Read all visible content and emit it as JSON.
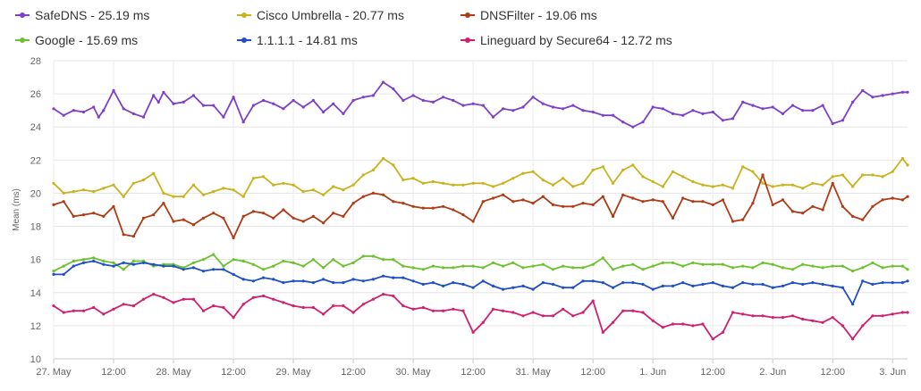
{
  "chart_data": {
    "type": "line",
    "title": "",
    "xlabel": "",
    "ylabel": "Mean (ms)",
    "ylim": [
      10,
      28
    ],
    "yticks": [
      10,
      12,
      14,
      16,
      18,
      20,
      22,
      24,
      26,
      28
    ],
    "xlim": [
      0,
      171
    ],
    "x_unit": "hours",
    "xticks": [
      {
        "x": 0,
        "label": "27. May"
      },
      {
        "x": 12,
        "label": "12:00"
      },
      {
        "x": 24,
        "label": "28. May"
      },
      {
        "x": 36,
        "label": "12:00"
      },
      {
        "x": 48,
        "label": "29. May"
      },
      {
        "x": 60,
        "label": "12:00"
      },
      {
        "x": 72,
        "label": "30. May"
      },
      {
        "x": 84,
        "label": "12:00"
      },
      {
        "x": 96,
        "label": "31. May"
      },
      {
        "x": 108,
        "label": "12:00"
      },
      {
        "x": 120,
        "label": "1. Jun"
      },
      {
        "x": 132,
        "label": "12:00"
      },
      {
        "x": 144,
        "label": "2. Jun"
      },
      {
        "x": 156,
        "label": "12:00"
      },
      {
        "x": 168,
        "label": "3. Jun"
      }
    ],
    "grid": true,
    "legend_placement": "top",
    "series": [
      {
        "name": "SafeDNS - 25.19 ms",
        "color": "#7e3fc9",
        "x": [
          0,
          2,
          4,
          6,
          8,
          9,
          10,
          12,
          14,
          16,
          18,
          20,
          21,
          22,
          24,
          26,
          28,
          30,
          32,
          34,
          36,
          38,
          40,
          42,
          44,
          46,
          48,
          50,
          52,
          54,
          56,
          58,
          60,
          62,
          64,
          66,
          68,
          70,
          72,
          74,
          76,
          78,
          80,
          82,
          84,
          86,
          88,
          90,
          92,
          94,
          96,
          98,
          100,
          102,
          104,
          106,
          108,
          110,
          112,
          114,
          116,
          118,
          120,
          122,
          124,
          126,
          128,
          130,
          132,
          134,
          136,
          138,
          140,
          142,
          144,
          146,
          148,
          150,
          152,
          154,
          156,
          158,
          160,
          162,
          164,
          166,
          168,
          170,
          171
        ],
        "y": [
          25.1,
          24.7,
          25.0,
          24.9,
          25.2,
          24.6,
          25.0,
          26.2,
          25.1,
          24.8,
          24.6,
          25.9,
          25.5,
          26.1,
          25.4,
          25.5,
          25.9,
          25.3,
          25.3,
          24.6,
          25.8,
          24.3,
          25.3,
          25.6,
          25.4,
          25.1,
          25.6,
          25.2,
          25.6,
          24.9,
          25.4,
          24.8,
          25.6,
          25.8,
          25.9,
          26.7,
          26.3,
          25.6,
          25.9,
          25.6,
          25.5,
          25.8,
          25.6,
          25.3,
          25.4,
          25.3,
          24.6,
          25.1,
          25.0,
          25.2,
          25.8,
          25.4,
          25.2,
          25.1,
          25.3,
          25.0,
          24.9,
          24.7,
          24.7,
          24.3,
          24.0,
          24.3,
          25.2,
          25.1,
          24.8,
          24.7,
          25.0,
          24.8,
          24.9,
          24.4,
          24.5,
          25.5,
          25.3,
          25.1,
          25.2,
          24.8,
          25.3,
          25.0,
          25.0,
          25.3,
          24.2,
          24.4,
          25.5,
          26.2,
          25.8,
          25.9,
          26.0,
          26.1,
          26.1
        ]
      },
      {
        "name": "Cisco Umbrella - 20.77 ms",
        "color": "#c9b21c",
        "x": [
          0,
          2,
          4,
          6,
          8,
          10,
          12,
          14,
          16,
          18,
          20,
          22,
          24,
          26,
          28,
          30,
          32,
          34,
          36,
          38,
          40,
          42,
          44,
          46,
          48,
          50,
          52,
          54,
          56,
          58,
          60,
          62,
          64,
          66,
          68,
          70,
          72,
          74,
          76,
          78,
          80,
          82,
          84,
          86,
          88,
          90,
          92,
          94,
          96,
          98,
          100,
          102,
          104,
          106,
          108,
          110,
          112,
          114,
          116,
          118,
          120,
          122,
          124,
          126,
          128,
          130,
          132,
          134,
          136,
          138,
          140,
          142,
          144,
          146,
          148,
          150,
          152,
          154,
          156,
          158,
          160,
          162,
          164,
          166,
          168,
          170,
          171
        ],
        "y": [
          20.6,
          20.0,
          20.1,
          20.2,
          20.1,
          20.3,
          20.5,
          19.8,
          20.6,
          20.8,
          21.2,
          20.0,
          19.8,
          19.8,
          20.5,
          19.9,
          20.1,
          20.3,
          20.2,
          19.8,
          20.9,
          21.0,
          20.5,
          20.6,
          20.5,
          20.1,
          20.2,
          19.9,
          20.4,
          20.2,
          20.5,
          21.1,
          21.4,
          22.1,
          21.7,
          20.8,
          20.9,
          20.6,
          20.7,
          20.6,
          20.5,
          20.5,
          20.6,
          20.6,
          20.4,
          20.6,
          20.9,
          21.2,
          21.3,
          20.8,
          20.5,
          20.9,
          20.4,
          20.6,
          21.4,
          21.6,
          20.6,
          21.4,
          21.7,
          21.0,
          20.7,
          20.4,
          21.3,
          21.0,
          20.7,
          20.5,
          20.4,
          20.5,
          20.3,
          21.6,
          21.3,
          20.6,
          20.4,
          20.5,
          20.5,
          20.3,
          20.6,
          20.5,
          21.0,
          21.1,
          20.4,
          21.1,
          21.1,
          21.0,
          21.3,
          22.1,
          21.7
        ]
      },
      {
        "name": "DNSFilter - 19.06 ms",
        "color": "#b03a14",
        "x": [
          0,
          2,
          4,
          6,
          8,
          10,
          12,
          14,
          16,
          18,
          20,
          22,
          24,
          26,
          28,
          30,
          32,
          34,
          36,
          38,
          40,
          42,
          44,
          46,
          48,
          50,
          52,
          54,
          56,
          58,
          60,
          62,
          64,
          66,
          68,
          70,
          72,
          74,
          76,
          78,
          80,
          82,
          84,
          86,
          88,
          90,
          92,
          94,
          96,
          98,
          100,
          102,
          104,
          106,
          108,
          110,
          112,
          114,
          116,
          118,
          120,
          122,
          124,
          126,
          128,
          130,
          132,
          134,
          136,
          138,
          140,
          142,
          144,
          146,
          148,
          150,
          152,
          154,
          156,
          158,
          160,
          162,
          164,
          166,
          168,
          170,
          171
        ],
        "y": [
          19.3,
          19.5,
          18.6,
          18.7,
          18.8,
          18.6,
          19.2,
          17.5,
          17.4,
          18.5,
          18.7,
          19.4,
          18.3,
          18.4,
          18.1,
          18.5,
          18.8,
          18.5,
          17.3,
          18.6,
          18.9,
          18.8,
          18.5,
          19.0,
          18.5,
          18.3,
          18.6,
          18.2,
          18.8,
          18.6,
          19.4,
          19.8,
          20.0,
          19.9,
          19.5,
          19.4,
          19.2,
          19.1,
          19.1,
          19.2,
          19.0,
          18.7,
          18.3,
          19.5,
          19.7,
          19.9,
          19.5,
          19.6,
          19.4,
          19.8,
          19.3,
          19.2,
          19.2,
          19.4,
          19.3,
          19.8,
          18.6,
          19.9,
          19.7,
          19.5,
          19.6,
          19.5,
          18.5,
          19.7,
          19.5,
          19.5,
          19.3,
          19.6,
          18.3,
          18.4,
          19.4,
          21.1,
          19.3,
          19.6,
          18.9,
          18.8,
          19.2,
          19.0,
          20.6,
          19.2,
          18.6,
          18.4,
          19.2,
          19.6,
          19.7,
          19.6,
          19.8
        ]
      },
      {
        "name": "Google - 15.69 ms",
        "color": "#6cc12c",
        "x": [
          0,
          2,
          4,
          6,
          8,
          10,
          12,
          14,
          16,
          18,
          20,
          22,
          24,
          26,
          28,
          30,
          32,
          34,
          36,
          38,
          40,
          42,
          44,
          46,
          48,
          50,
          52,
          54,
          56,
          58,
          60,
          62,
          64,
          66,
          68,
          70,
          72,
          74,
          76,
          78,
          80,
          82,
          84,
          86,
          88,
          90,
          92,
          94,
          96,
          98,
          100,
          102,
          104,
          106,
          108,
          110,
          112,
          114,
          116,
          118,
          120,
          122,
          124,
          126,
          128,
          130,
          132,
          134,
          136,
          138,
          140,
          142,
          144,
          146,
          148,
          150,
          152,
          154,
          156,
          158,
          160,
          162,
          164,
          166,
          168,
          170,
          171
        ],
        "y": [
          15.3,
          15.6,
          15.9,
          16.0,
          16.1,
          15.9,
          15.8,
          15.4,
          15.9,
          15.9,
          15.6,
          15.7,
          15.7,
          15.5,
          15.8,
          16.0,
          16.3,
          15.6,
          16.0,
          15.9,
          15.7,
          15.4,
          15.6,
          15.9,
          15.8,
          15.6,
          16.0,
          15.5,
          16.0,
          15.6,
          15.8,
          16.2,
          16.2,
          16.0,
          16.0,
          15.6,
          15.5,
          15.4,
          15.6,
          15.5,
          15.5,
          15.6,
          15.6,
          15.5,
          15.8,
          15.6,
          15.8,
          15.5,
          15.6,
          15.7,
          15.4,
          15.6,
          15.5,
          15.5,
          15.7,
          16.1,
          15.4,
          15.6,
          15.7,
          15.4,
          15.6,
          15.8,
          15.8,
          15.6,
          15.8,
          15.7,
          15.7,
          15.7,
          15.5,
          15.6,
          15.5,
          15.8,
          15.7,
          15.5,
          15.4,
          15.7,
          15.6,
          15.5,
          15.6,
          15.6,
          15.3,
          15.5,
          15.8,
          15.5,
          15.6,
          15.6,
          15.4
        ]
      },
      {
        "name": "1.1.1.1 - 14.81 ms",
        "color": "#1f4fc4",
        "x": [
          0,
          2,
          4,
          6,
          8,
          10,
          12,
          14,
          16,
          18,
          20,
          22,
          24,
          26,
          28,
          30,
          32,
          34,
          36,
          38,
          40,
          42,
          44,
          46,
          48,
          50,
          52,
          54,
          56,
          58,
          60,
          62,
          64,
          66,
          68,
          70,
          72,
          74,
          76,
          78,
          80,
          82,
          84,
          86,
          88,
          90,
          92,
          94,
          96,
          98,
          100,
          102,
          104,
          106,
          108,
          110,
          112,
          114,
          116,
          118,
          120,
          122,
          124,
          126,
          128,
          130,
          132,
          134,
          136,
          138,
          140,
          142,
          144,
          146,
          148,
          150,
          152,
          154,
          156,
          158,
          160,
          162,
          164,
          166,
          168,
          170,
          171
        ],
        "y": [
          15.1,
          15.1,
          15.6,
          15.8,
          15.9,
          15.7,
          15.6,
          15.8,
          15.7,
          15.8,
          15.7,
          15.6,
          15.6,
          15.4,
          15.5,
          15.3,
          15.4,
          15.4,
          15.1,
          14.8,
          14.7,
          14.9,
          14.8,
          14.6,
          14.7,
          14.7,
          14.6,
          14.8,
          14.6,
          14.6,
          14.8,
          14.7,
          14.8,
          15.0,
          14.9,
          14.9,
          14.7,
          14.5,
          14.6,
          14.4,
          14.6,
          14.5,
          14.3,
          14.7,
          14.4,
          14.2,
          14.3,
          14.4,
          14.2,
          14.6,
          14.5,
          14.3,
          14.3,
          14.7,
          14.7,
          14.6,
          14.3,
          14.6,
          14.6,
          14.5,
          14.2,
          14.4,
          14.4,
          14.6,
          14.4,
          14.5,
          14.6,
          14.4,
          14.3,
          14.6,
          14.5,
          14.5,
          14.3,
          14.4,
          14.6,
          14.5,
          14.6,
          14.5,
          14.4,
          14.3,
          13.3,
          14.7,
          14.5,
          14.6,
          14.6,
          14.6,
          14.7
        ]
      },
      {
        "name": "Lineguard by Secure64 - 12.72 ms",
        "color": "#d01f6f",
        "x": [
          0,
          2,
          4,
          6,
          8,
          10,
          12,
          14,
          16,
          18,
          20,
          22,
          24,
          26,
          28,
          30,
          32,
          34,
          36,
          38,
          40,
          42,
          44,
          46,
          48,
          50,
          52,
          54,
          56,
          58,
          60,
          62,
          64,
          66,
          68,
          70,
          72,
          74,
          76,
          78,
          80,
          82,
          84,
          86,
          88,
          90,
          92,
          94,
          96,
          98,
          100,
          102,
          104,
          106,
          108,
          110,
          112,
          114,
          116,
          118,
          120,
          122,
          124,
          126,
          128,
          130,
          132,
          134,
          136,
          138,
          140,
          142,
          144,
          146,
          148,
          150,
          152,
          154,
          156,
          158,
          160,
          162,
          164,
          166,
          168,
          170,
          171
        ],
        "y": [
          13.2,
          12.8,
          12.9,
          12.9,
          13.1,
          12.7,
          13.0,
          13.3,
          13.2,
          13.6,
          13.9,
          13.7,
          13.4,
          13.6,
          13.6,
          12.9,
          13.2,
          13.1,
          12.5,
          13.3,
          13.7,
          13.8,
          13.6,
          13.4,
          13.2,
          13.1,
          13.1,
          12.7,
          13.2,
          13.2,
          12.8,
          13.3,
          13.6,
          13.9,
          13.8,
          13.2,
          13.0,
          13.1,
          12.9,
          12.9,
          13.0,
          12.9,
          11.6,
          12.2,
          13.0,
          12.9,
          12.8,
          12.6,
          12.8,
          12.6,
          12.6,
          13.0,
          12.6,
          12.8,
          13.5,
          11.6,
          12.2,
          12.9,
          12.9,
          12.8,
          12.3,
          11.9,
          12.1,
          12.1,
          12.0,
          12.1,
          11.2,
          11.6,
          12.8,
          12.7,
          12.6,
          12.6,
          12.5,
          12.5,
          12.6,
          12.4,
          12.3,
          12.2,
          12.5,
          12.0,
          11.2,
          12.0,
          12.6,
          12.6,
          12.7,
          12.8,
          12.8
        ]
      }
    ]
  }
}
